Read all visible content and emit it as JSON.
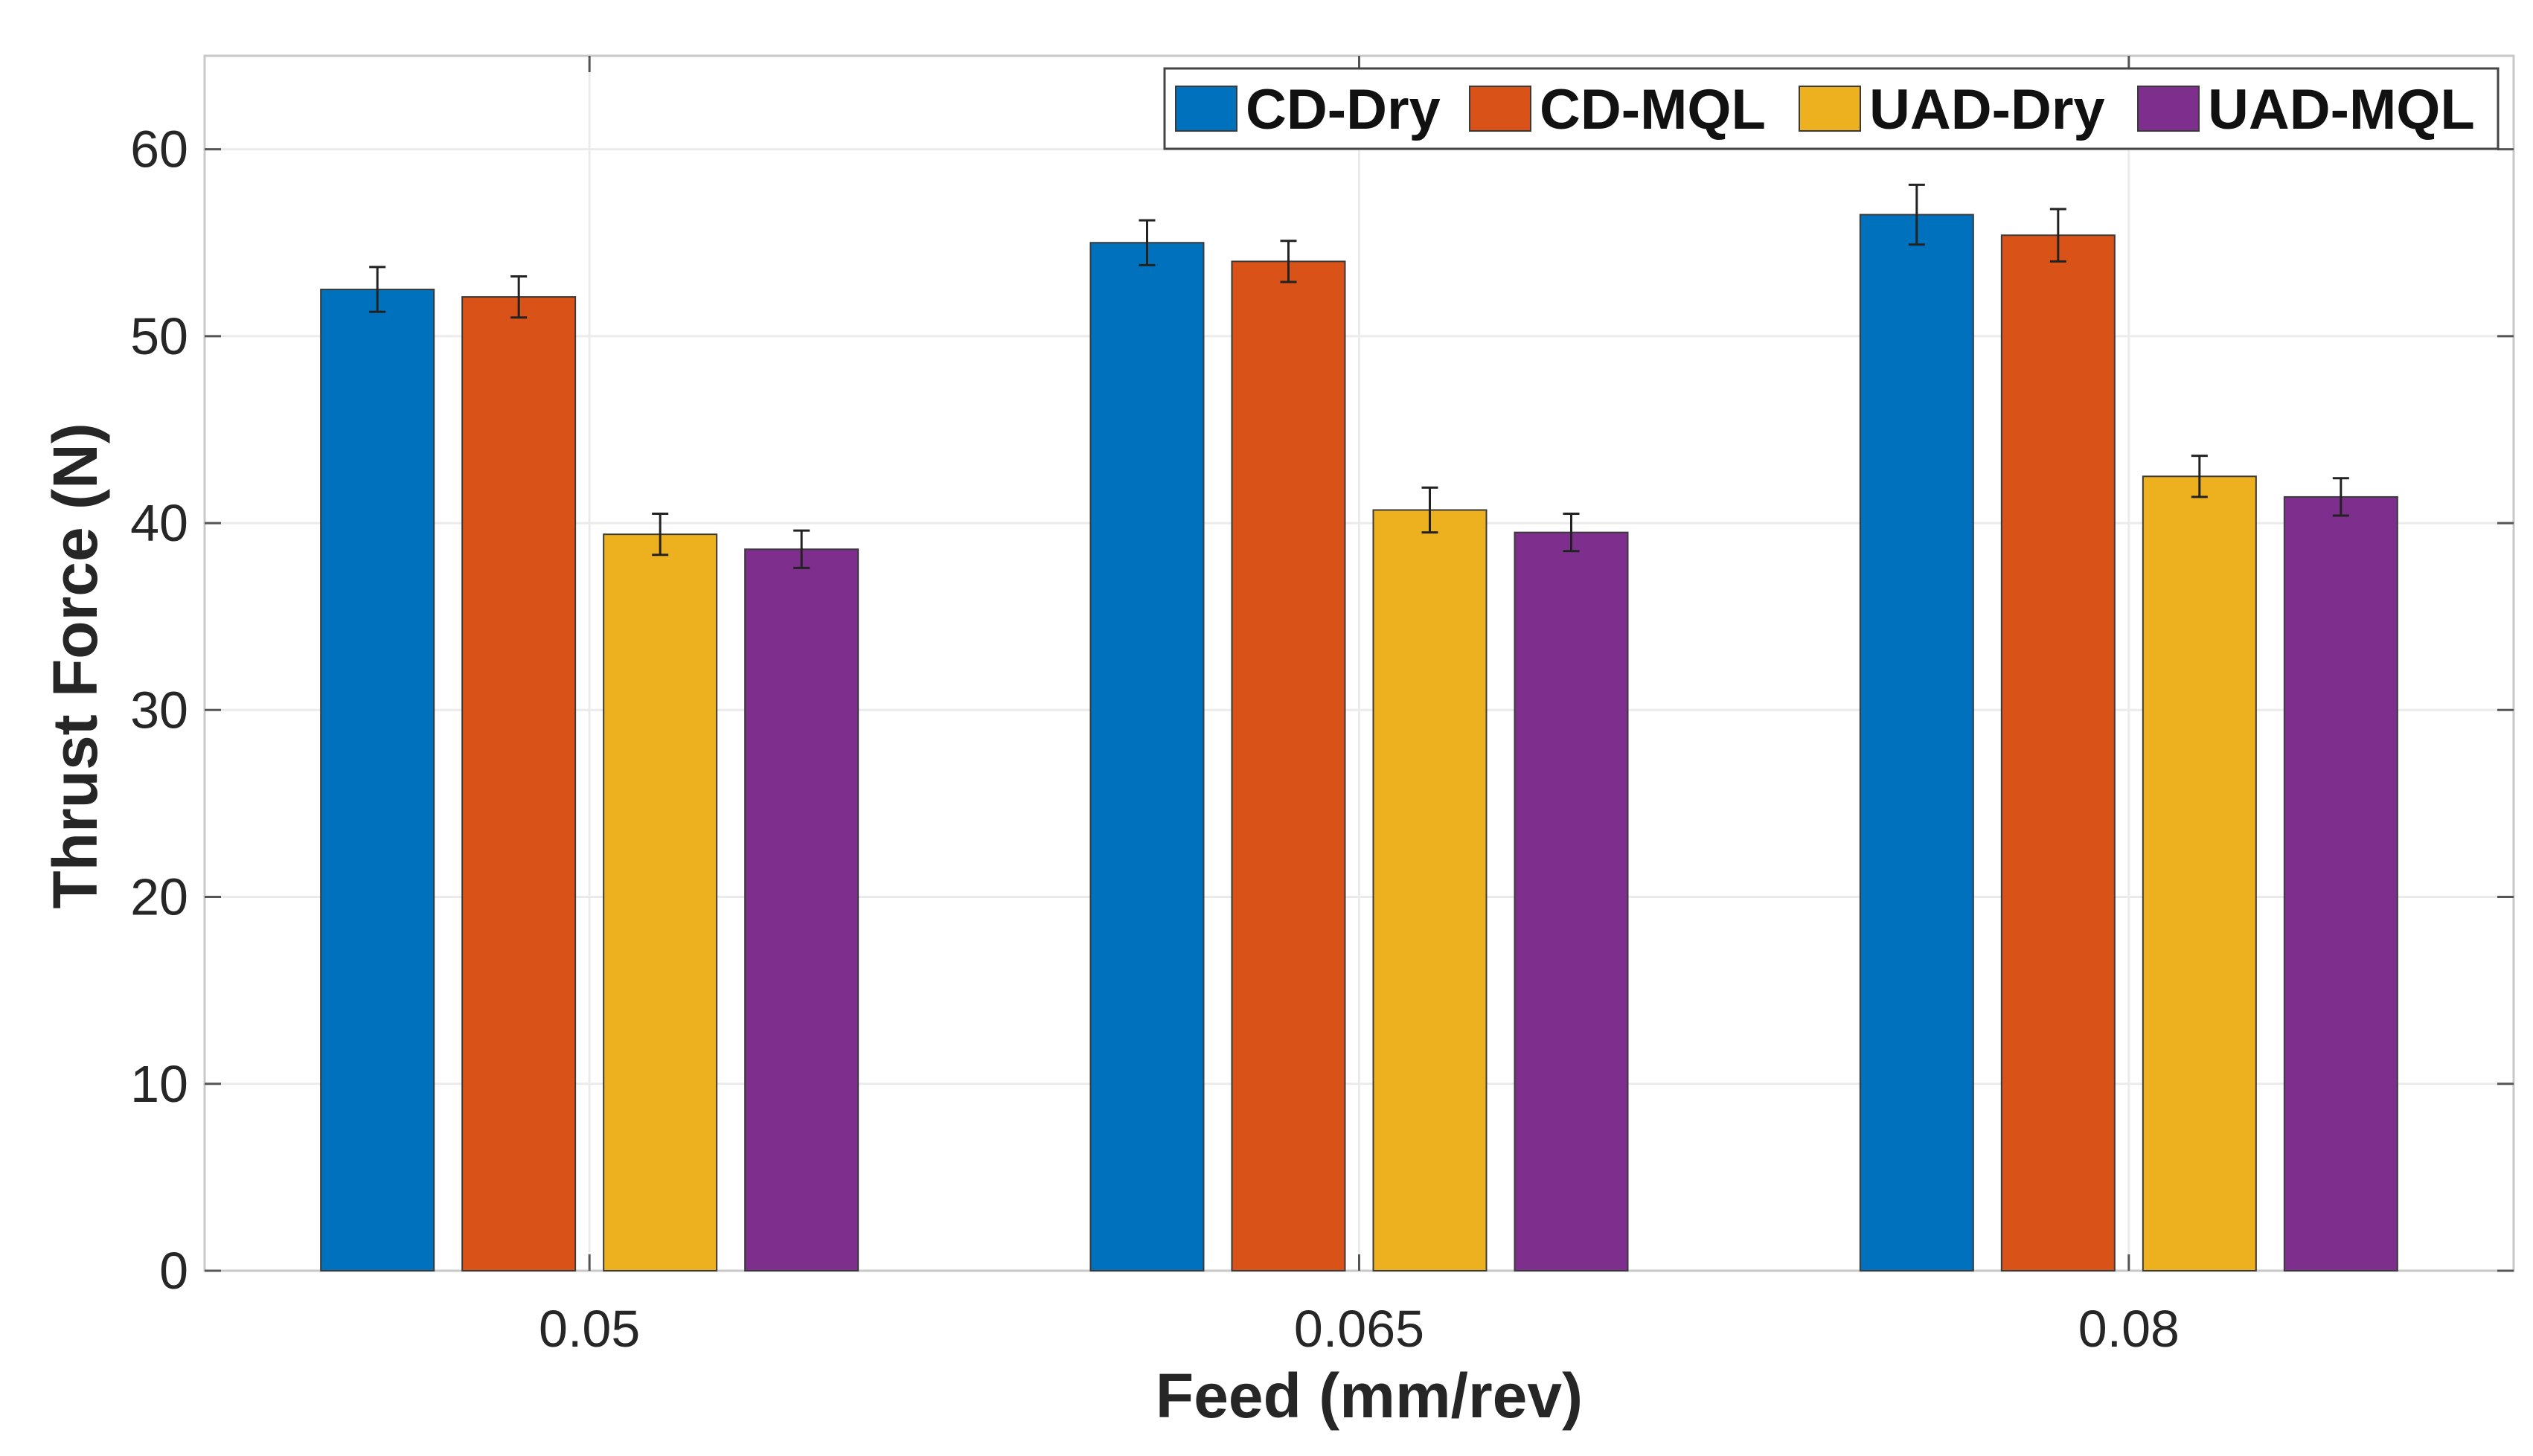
{
  "chart_data": {
    "type": "bar",
    "title": "",
    "xlabel": "Feed (mm/rev)",
    "ylabel": "Thrust Force (N)",
    "categories": [
      "0.05",
      "0.065",
      "0.08"
    ],
    "ylim": [
      0,
      65
    ],
    "yticks": [
      0,
      10,
      20,
      30,
      40,
      50,
      60
    ],
    "grid": true,
    "legend_position": "top-right",
    "series": [
      {
        "name": "CD-Dry",
        "color": "#0072BD",
        "values": [
          52.5,
          55.0,
          56.5
        ],
        "errors": [
          1.2,
          1.2,
          1.6
        ]
      },
      {
        "name": "CD-MQL",
        "color": "#D95319",
        "values": [
          52.1,
          54.0,
          55.4
        ],
        "errors": [
          1.1,
          1.1,
          1.4
        ]
      },
      {
        "name": "UAD-Dry",
        "color": "#EDB120",
        "values": [
          39.4,
          40.7,
          42.5
        ],
        "errors": [
          1.1,
          1.2,
          1.1
        ]
      },
      {
        "name": "UAD-MQL",
        "color": "#7E2F8E",
        "values": [
          38.6,
          39.5,
          41.4
        ],
        "errors": [
          1.0,
          1.0,
          1.0
        ]
      }
    ]
  }
}
